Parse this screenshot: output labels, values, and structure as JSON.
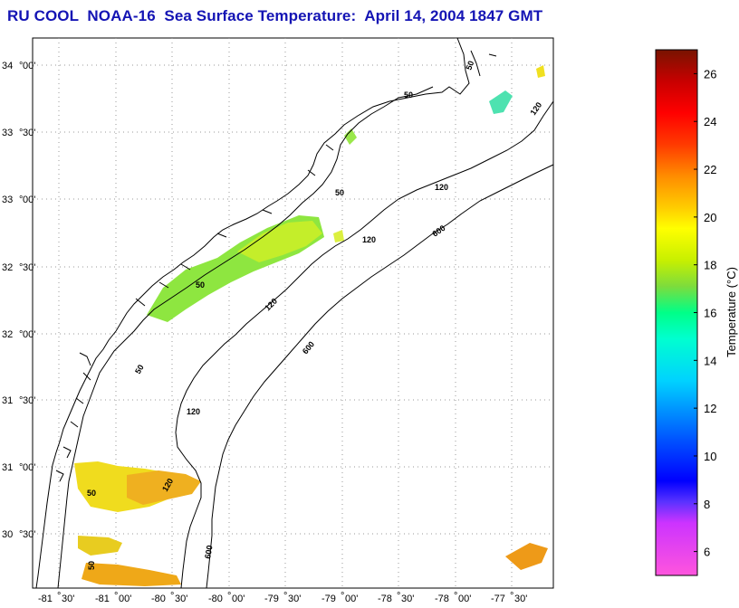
{
  "title": "RU COOL  NOAA-16  Sea Surface Temperature:  April 14, 2004 1847 GMT",
  "map": {
    "lat_labels": [
      {
        "deg": "34",
        "min": "00'"
      },
      {
        "deg": "33",
        "min": "30'"
      },
      {
        "deg": "33",
        "min": "00'"
      },
      {
        "deg": "32",
        "min": "30'"
      },
      {
        "deg": "32",
        "min": "00'"
      },
      {
        "deg": "31",
        "min": "30'"
      },
      {
        "deg": "31",
        "min": "00'"
      },
      {
        "deg": "30",
        "min": "30'"
      }
    ],
    "lon_labels": [
      {
        "deg": "-81",
        "min": "30'"
      },
      {
        "deg": "-81",
        "min": "00'"
      },
      {
        "deg": "-80",
        "min": "30'"
      },
      {
        "deg": "-80",
        "min": "00'"
      },
      {
        "deg": "-79",
        "min": "30'"
      },
      {
        "deg": "-79",
        "min": "00'"
      },
      {
        "deg": "-78",
        "min": "30'"
      },
      {
        "deg": "-78",
        "min": "00'"
      },
      {
        "deg": "-77",
        "min": "30'"
      }
    ],
    "isobath_labels": [
      "50",
      "50",
      "50",
      "50",
      "50",
      "50",
      "50",
      "120",
      "120",
      "120",
      "120",
      "120",
      "120",
      "600",
      "600",
      "600"
    ]
  },
  "colorbar": {
    "label": "Temperature (°C)",
    "ticks": [
      "26",
      "24",
      "22",
      "20",
      "18",
      "16",
      "14",
      "12",
      "10",
      "8",
      "6"
    ],
    "tick_values": [
      26,
      24,
      22,
      20,
      18,
      16,
      14,
      12,
      10,
      8,
      6
    ],
    "range": [
      5,
      27
    ],
    "stops": [
      "#ff55dd",
      "#cc33ff",
      "#5a32ff",
      "#0000ff",
      "#0055ff",
      "#00d2ff",
      "#00ffd0",
      "#00ff88",
      "#7ddc3c",
      "#c8f000",
      "#ffff00",
      "#ffcc00",
      "#ff8c00",
      "#ff3a00",
      "#ff0000",
      "#c80000",
      "#781400"
    ]
  }
}
